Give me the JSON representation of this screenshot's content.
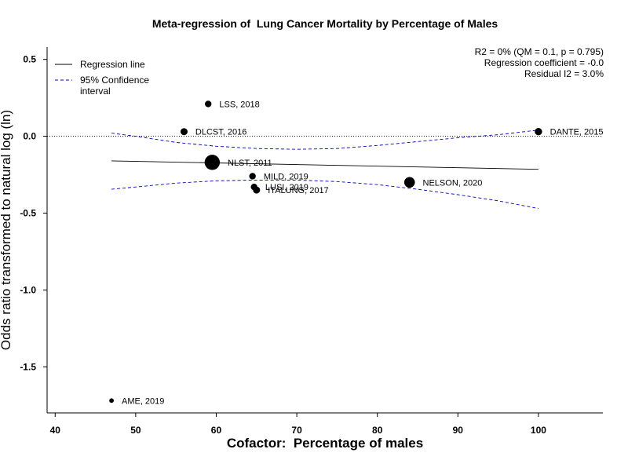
{
  "chart_data": {
    "type": "scatter",
    "title": "Meta-regression of  Lung Cancer Mortality by Percentage of Males",
    "xlabel": "Cofactor:  Percentage of males",
    "ylabel": "Odds ratio transformed to natural log (ln)",
    "xlim": [
      39,
      108
    ],
    "ylim": [
      -1.8,
      0.58
    ],
    "xticks": [
      40,
      50,
      60,
      70,
      80,
      90,
      100
    ],
    "yticks": [
      0.5,
      0.0,
      -0.5,
      -1.0,
      -1.5
    ],
    "xtick_labels": [
      "40",
      "50",
      "60",
      "70",
      "80",
      "90",
      "100"
    ],
    "ytick_labels": [
      "0.5",
      "0.0",
      "-0.5",
      "-1.0",
      "-1.5"
    ],
    "grid": false,
    "reference_line_y": 0,
    "stats": [
      "R2 = 0% (QM = 0.1, p = 0.795)",
      "Regression coefficient = -0.0",
      "Residual I2 = 3.0%"
    ],
    "legend": {
      "position": "top-left",
      "entries": [
        {
          "label": "Regression line",
          "style": "solid",
          "color": "#000000"
        },
        {
          "label": "95% Confidence\ninterval",
          "style": "dashed",
          "color": "#0000cc"
        }
      ]
    },
    "studies": [
      {
        "label": "LSS, 2018",
        "x": 59.0,
        "y": 0.21,
        "weight": 1.0
      },
      {
        "label": "DLCST, 2016",
        "x": 56.0,
        "y": 0.03,
        "weight": 1.1
      },
      {
        "label": "DANTE, 2015",
        "x": 100.0,
        "y": 0.03,
        "weight": 1.2
      },
      {
        "label": "NLST, 2011",
        "x": 59.5,
        "y": -0.17,
        "weight": 3.1
      },
      {
        "label": "MILD, 2019",
        "x": 64.5,
        "y": -0.26,
        "weight": 1.0
      },
      {
        "label": "LUSI, 2019",
        "x": 64.7,
        "y": -0.33,
        "weight": 1.0
      },
      {
        "label": "ITALUNG, 2017",
        "x": 65.0,
        "y": -0.35,
        "weight": 1.1
      },
      {
        "label": "NELSON, 2020",
        "x": 84.0,
        "y": -0.3,
        "weight": 2.0
      },
      {
        "label": "AME, 2019",
        "x": 47.0,
        "y": -1.72,
        "weight": 0.5
      }
    ],
    "regression_line": {
      "x": [
        47,
        100
      ],
      "y": [
        -0.16,
        -0.215
      ]
    },
    "ci_upper": {
      "x": [
        47,
        50,
        55,
        60,
        65,
        70,
        75,
        80,
        85,
        90,
        95,
        100
      ],
      "y": [
        0.02,
        0.0,
        -0.04,
        -0.065,
        -0.08,
        -0.085,
        -0.08,
        -0.06,
        -0.035,
        -0.01,
        0.01,
        0.04
      ]
    },
    "ci_lower": {
      "x": [
        47,
        50,
        55,
        60,
        65,
        70,
        75,
        80,
        85,
        90,
        95,
        100
      ],
      "y": [
        -0.345,
        -0.33,
        -0.305,
        -0.29,
        -0.285,
        -0.285,
        -0.295,
        -0.315,
        -0.345,
        -0.38,
        -0.42,
        -0.47
      ]
    }
  }
}
